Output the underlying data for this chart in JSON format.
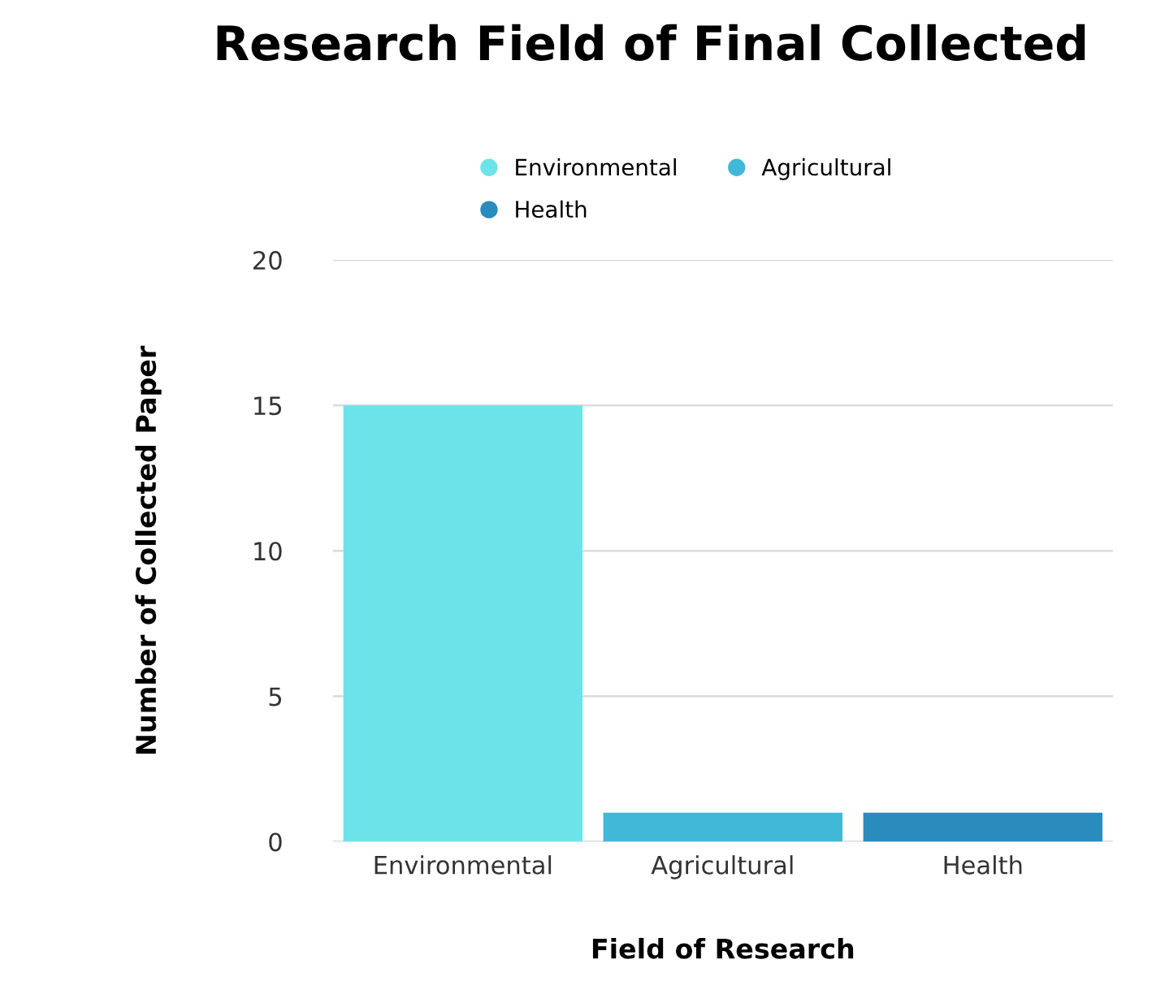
{
  "chart_data": {
    "type": "bar",
    "title": "Research Field of Final Collected",
    "xlabel": "Field of Research",
    "ylabel": "Number of Collected Paper",
    "categories": [
      "Environmental",
      "Agricultural",
      "Health"
    ],
    "series": [
      {
        "name": "Environmental",
        "color": "#6ce3e8",
        "values": [
          15,
          null,
          null
        ]
      },
      {
        "name": "Agricultural",
        "color": "#41b8d8",
        "values": [
          null,
          1,
          null
        ]
      },
      {
        "name": "Health",
        "color": "#2a8bbd",
        "values": [
          null,
          null,
          1
        ]
      }
    ],
    "ylim": [
      0,
      20
    ],
    "yticks": [
      0,
      5,
      10,
      15,
      20
    ],
    "grid": "y",
    "legend": "top",
    "marker": "circle"
  }
}
